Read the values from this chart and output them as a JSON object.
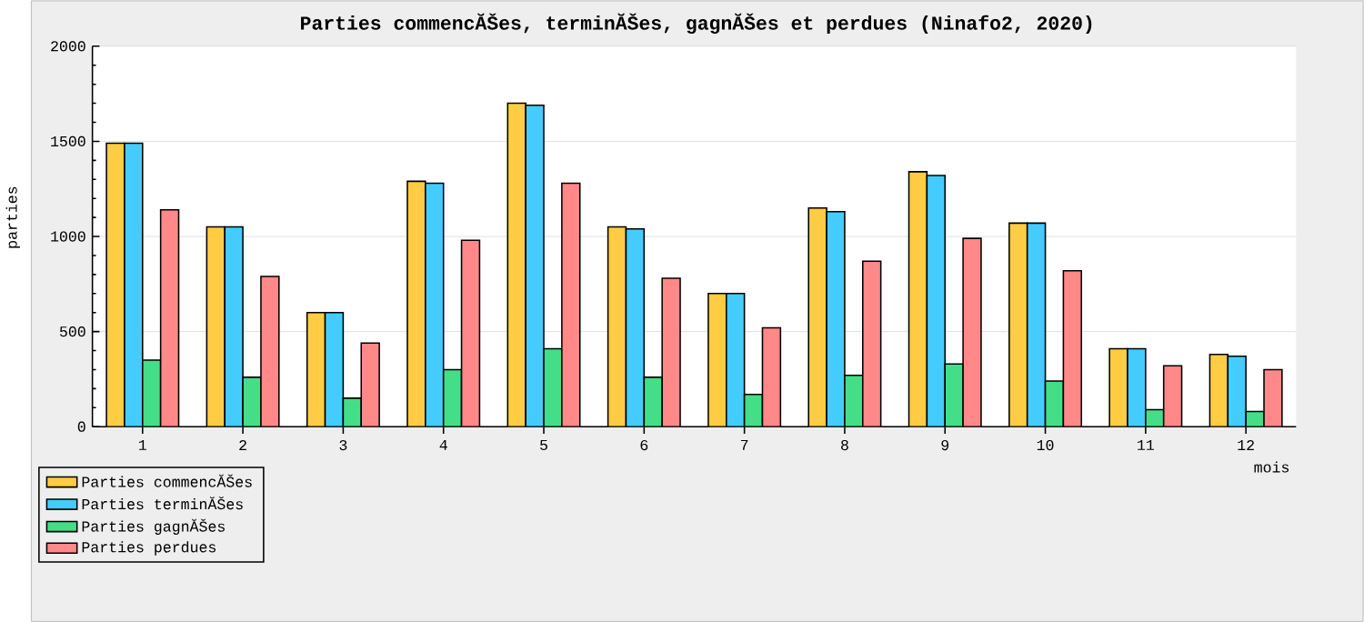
{
  "chart_data": {
    "type": "bar",
    "title": "Parties commencĂŠes, terminĂŠes, gagnĂŠes et perdues (Ninafo2, 2020)",
    "xlabel": "mois",
    "ylabel": "parties",
    "categories": [
      "1",
      "2",
      "3",
      "4",
      "5",
      "6",
      "7",
      "8",
      "9",
      "10",
      "11",
      "12"
    ],
    "series": [
      {
        "name": "Parties commencĂŠes",
        "color": "#ffcc44",
        "values": [
          1490,
          1050,
          600,
          1290,
          1700,
          1050,
          700,
          1150,
          1340,
          1070,
          410,
          380
        ]
      },
      {
        "name": "Parties terminĂŠes",
        "color": "#44ccff",
        "values": [
          1490,
          1050,
          600,
          1280,
          1690,
          1040,
          700,
          1130,
          1320,
          1070,
          410,
          370
        ]
      },
      {
        "name": "Parties gagnĂŠes",
        "color": "#44dd88",
        "values": [
          350,
          260,
          150,
          300,
          410,
          260,
          170,
          270,
          330,
          240,
          90,
          80
        ]
      },
      {
        "name": "Parties perdues",
        "color": "#ff8888",
        "values": [
          1140,
          790,
          440,
          980,
          1280,
          780,
          520,
          870,
          990,
          820,
          320,
          300
        ]
      }
    ],
    "ylim": [
      0,
      2000
    ],
    "yticks": [
      0,
      500,
      1000,
      1500,
      2000
    ],
    "grid": "y",
    "legend": "bottom left"
  }
}
